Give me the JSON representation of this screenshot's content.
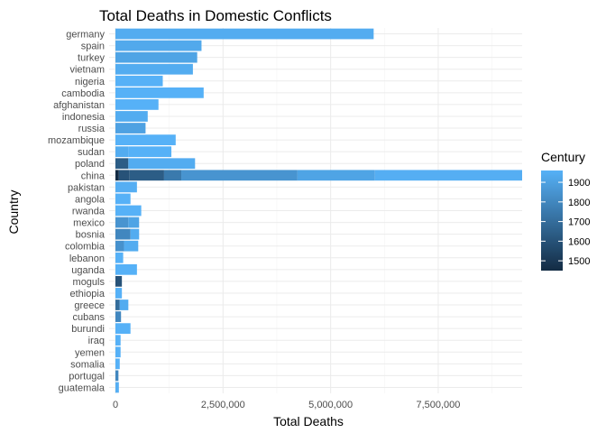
{
  "chart_data": {
    "type": "bar",
    "orientation": "horizontal",
    "stacked": true,
    "title": "Total Deaths in Domestic Conflicts",
    "xlabel": "Total Deaths",
    "ylabel": "Country",
    "xlim": [
      0,
      9450000
    ],
    "x_ticks": [
      0,
      2500000,
      5000000,
      7500000
    ],
    "x_tick_labels": [
      "0",
      "2,500,000",
      "5,000,000",
      "7,500,000"
    ],
    "grid": true,
    "legend": {
      "title": "Century",
      "position": "right",
      "breaks": [
        1500,
        1600,
        1700,
        1800,
        1900
      ],
      "labels": [
        "1500",
        "1600",
        "1700",
        "1800",
        "1900"
      ],
      "range": [
        1450,
        1960
      ],
      "color_low": "#132b43",
      "color_high": "#56b1f7"
    },
    "categories": [
      "germany",
      "spain",
      "turkey",
      "vietnam",
      "nigeria",
      "cambodia",
      "afghanistan",
      "indonesia",
      "russia",
      "mozambique",
      "sudan",
      "poland",
      "china",
      "pakistan",
      "angola",
      "rwanda",
      "mexico",
      "bosnia",
      "colombia",
      "lebanon",
      "uganda",
      "moguls",
      "ethiopia",
      "greece",
      "cubans",
      "burundi",
      "iraq",
      "yemen",
      "somalia",
      "portugal",
      "guatemala"
    ],
    "segments": [
      [
        {
          "value": 6000000,
          "century": 1940
        }
      ],
      [
        {
          "value": 2000000,
          "century": 1930
        }
      ],
      [
        {
          "value": 1900000,
          "century": 1910
        }
      ],
      [
        {
          "value": 1800000,
          "century": 1940
        }
      ],
      [
        {
          "value": 1100000,
          "century": 1960
        }
      ],
      [
        {
          "value": 2050000,
          "century": 1960
        }
      ],
      [
        {
          "value": 1000000,
          "century": 1960
        }
      ],
      [
        {
          "value": 750000,
          "century": 1940
        }
      ],
      [
        {
          "value": 700000,
          "century": 1900
        }
      ],
      [
        {
          "value": 1400000,
          "century": 1960
        }
      ],
      [
        {
          "value": 300000,
          "century": 1940
        },
        {
          "value": 1000000,
          "century": 1960
        }
      ],
      [
        {
          "value": 300000,
          "century": 1640
        },
        {
          "value": 1550000,
          "century": 1940
        }
      ],
      [
        {
          "value": 80000,
          "century": 1450
        },
        {
          "value": 250000,
          "century": 1600
        },
        {
          "value": 800000,
          "century": 1640
        },
        {
          "value": 400000,
          "century": 1750
        },
        {
          "value": 2700000,
          "century": 1850
        },
        {
          "value": 1800000,
          "century": 1910
        },
        {
          "value": 3420000,
          "century": 1950
        }
      ],
      [
        {
          "value": 500000,
          "century": 1950
        }
      ],
      [
        {
          "value": 350000,
          "century": 1960
        }
      ],
      [
        {
          "value": 600000,
          "century": 1960
        }
      ],
      [
        {
          "value": 300000,
          "century": 1850
        },
        {
          "value": 250000,
          "century": 1910
        }
      ],
      [
        {
          "value": 350000,
          "century": 1800
        },
        {
          "value": 200000,
          "century": 1940
        }
      ],
      [
        {
          "value": 200000,
          "century": 1840
        },
        {
          "value": 330000,
          "century": 1940
        }
      ],
      [
        {
          "value": 180000,
          "century": 1960
        }
      ],
      [
        {
          "value": 500000,
          "century": 1960
        }
      ],
      [
        {
          "value": 150000,
          "century": 1600
        }
      ],
      [
        {
          "value": 150000,
          "century": 1960
        }
      ],
      [
        {
          "value": 100000,
          "century": 1700
        },
        {
          "value": 200000,
          "century": 1940
        }
      ],
      [
        {
          "value": 130000,
          "century": 1800
        }
      ],
      [
        {
          "value": 350000,
          "century": 1960
        }
      ],
      [
        {
          "value": 120000,
          "century": 1960
        }
      ],
      [
        {
          "value": 120000,
          "century": 1960
        }
      ],
      [
        {
          "value": 100000,
          "century": 1960
        }
      ],
      [
        {
          "value": 70000,
          "century": 1800
        }
      ],
      [
        {
          "value": 80000,
          "century": 1950
        }
      ]
    ]
  }
}
